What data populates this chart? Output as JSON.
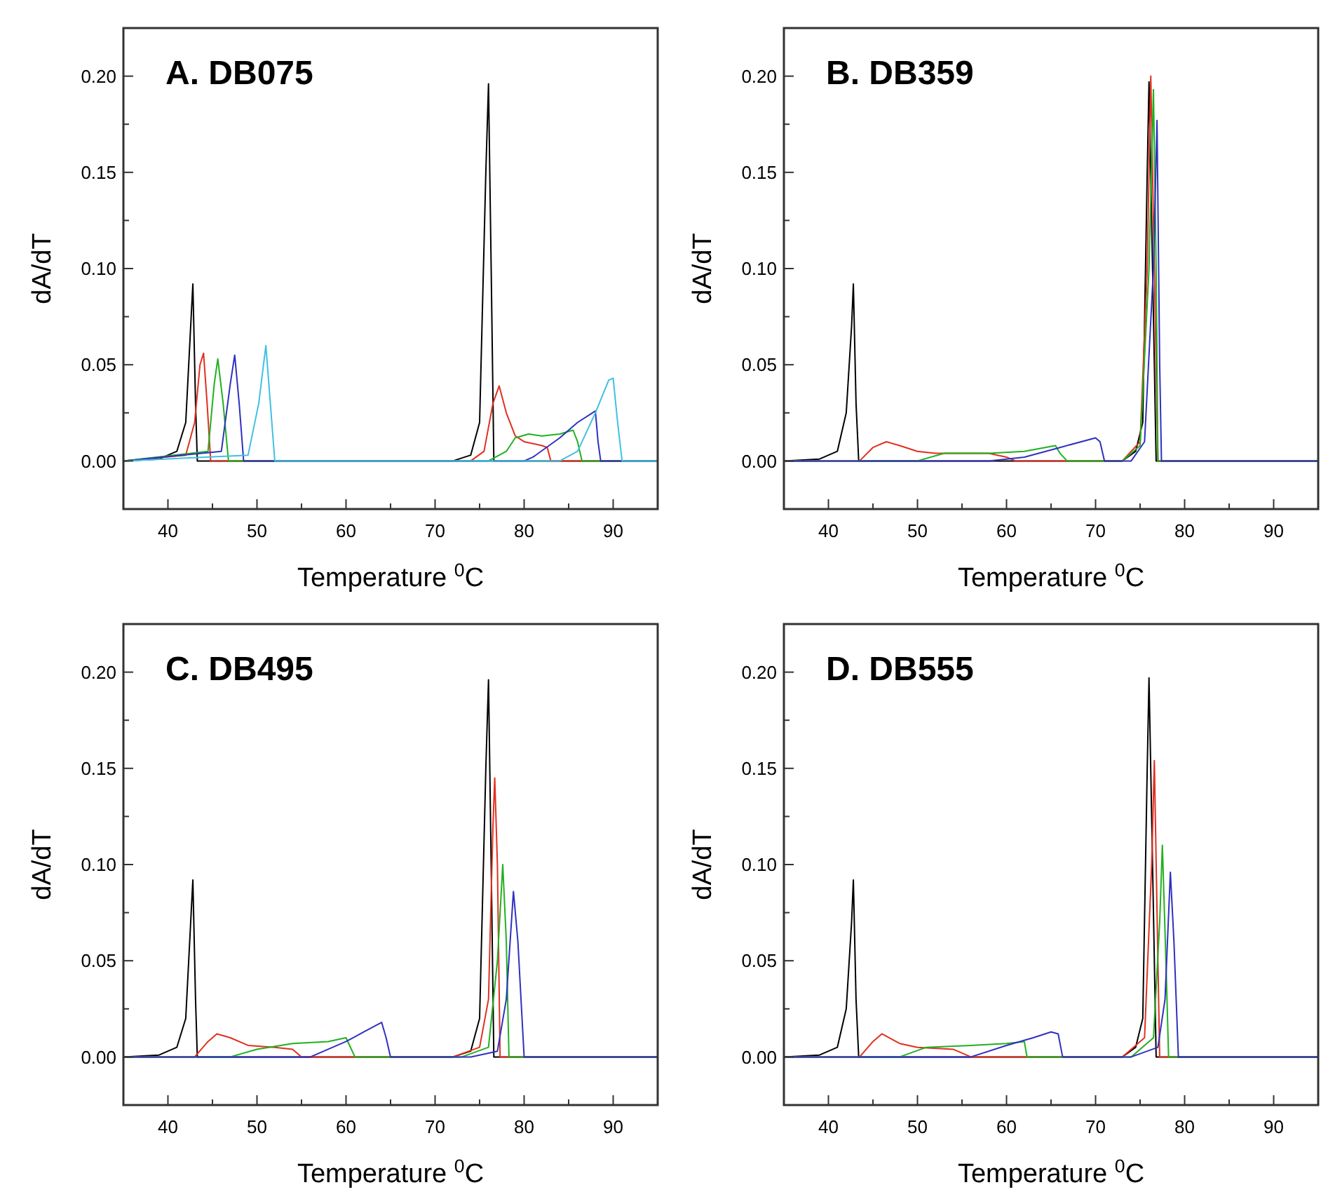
{
  "chart_data": [
    {
      "type": "line",
      "title": "A. DB075",
      "xlabel": "Temperature $^{0}$C",
      "ylabel": "dA/dT",
      "xlim": [
        35,
        95
      ],
      "ylim": [
        -0.025,
        0.225
      ],
      "xticks": [
        40,
        {
          "value": 45,
          "label": null
        },
        50,
        {
          "value": 55,
          "label": null
        },
        60,
        {
          "value": 65,
          "label": null
        },
        70,
        {
          "value": 75,
          "label": null
        },
        80,
        {
          "value": 85,
          "label": null
        },
        90,
        {
          "value": 95,
          "label": null
        }
      ],
      "yticks": [
        {
          "value": -0.025,
          "label": null
        },
        {
          "value": 0,
          "label": "0.00"
        },
        {
          "value": 0.025,
          "label": null
        },
        {
          "value": 0.05,
          "label": "0.05"
        },
        {
          "value": 0.075,
          "label": null
        },
        {
          "value": 0.1,
          "label": "0.10"
        },
        {
          "value": 0.125,
          "label": null
        },
        {
          "value": 0.15,
          "label": "0.15"
        },
        {
          "value": 0.175,
          "label": null
        },
        {
          "value": 0.2,
          "label": "0.20"
        }
      ],
      "grid": false,
      "marker": "none",
      "line_style": "solid",
      "series": [
        {
          "color": "#000000",
          "x": [
            35,
            39,
            41,
            42,
            42.5,
            42.8,
            43.1,
            43.3,
            60,
            72,
            74,
            75,
            75.7,
            76,
            76.3,
            76.6,
            95
          ],
          "values": [
            0,
            0.001,
            0.005,
            0.02,
            0.065,
            0.092,
            0.03,
            0,
            0,
            0,
            0.003,
            0.02,
            0.15,
            0.196,
            0.1,
            0,
            0
          ]
        },
        {
          "color": "#e03020",
          "x": [
            35,
            42,
            43,
            43.6,
            44,
            44.4,
            44.8,
            74,
            75.5,
            76.5,
            77.2,
            78,
            79,
            80,
            82,
            82.6,
            83,
            95
          ],
          "values": [
            0,
            0.003,
            0.02,
            0.05,
            0.056,
            0.03,
            0,
            0,
            0.005,
            0.03,
            0.039,
            0.025,
            0.013,
            0.01,
            0.008,
            0.007,
            0,
            0
          ]
        },
        {
          "color": "#20b020",
          "x": [
            35,
            44.5,
            45.2,
            45.6,
            46.2,
            46.8,
            76,
            78,
            79,
            80.5,
            82,
            84,
            85.5,
            86,
            86.5,
            95
          ],
          "values": [
            0,
            0.005,
            0.04,
            0.053,
            0.03,
            0,
            0,
            0.005,
            0.012,
            0.014,
            0.013,
            0.014,
            0.016,
            0.01,
            0,
            0
          ]
        },
        {
          "color": "#3030c0",
          "x": [
            35,
            46,
            47,
            47.5,
            48,
            48.5,
            80,
            81,
            84,
            86,
            88,
            88.3,
            88.6,
            95
          ],
          "values": [
            0,
            0.005,
            0.04,
            0.055,
            0.03,
            0,
            0,
            0.002,
            0.012,
            0.02,
            0.026,
            0.01,
            0,
            0
          ]
        },
        {
          "color": "#40c0e0",
          "x": [
            35,
            49,
            50.2,
            51,
            51.5,
            52,
            84,
            86,
            88,
            89.5,
            90,
            90.5,
            91,
            95
          ],
          "values": [
            0,
            0.003,
            0.03,
            0.06,
            0.03,
            0,
            0,
            0.005,
            0.025,
            0.042,
            0.043,
            0.02,
            0,
            0
          ]
        }
      ]
    },
    {
      "type": "line",
      "title": "B. DB359",
      "xlabel": "Temperature $^{0}$C",
      "ylabel": "dA/dT",
      "xlim": [
        35,
        95
      ],
      "ylim": [
        -0.025,
        0.225
      ],
      "xticks": [
        40,
        {
          "value": 45,
          "label": null
        },
        50,
        {
          "value": 55,
          "label": null
        },
        60,
        {
          "value": 65,
          "label": null
        },
        70,
        {
          "value": 75,
          "label": null
        },
        80,
        {
          "value": 85,
          "label": null
        },
        90,
        {
          "value": 95,
          "label": null
        }
      ],
      "yticks": [
        {
          "value": -0.025,
          "label": null
        },
        {
          "value": 0,
          "label": "0.00"
        },
        {
          "value": 0.025,
          "label": null
        },
        {
          "value": 0.05,
          "label": "0.05"
        },
        {
          "value": 0.075,
          "label": null
        },
        {
          "value": 0.1,
          "label": "0.10"
        },
        {
          "value": 0.125,
          "label": null
        },
        {
          "value": 0.15,
          "label": "0.15"
        },
        {
          "value": 0.175,
          "label": null
        },
        {
          "value": 0.2,
          "label": "0.20"
        }
      ],
      "grid": false,
      "marker": "none",
      "line_style": "solid",
      "series": [
        {
          "color": "#000000",
          "x": [
            35,
            39,
            41,
            42,
            42.6,
            42.8,
            43.1,
            43.4,
            73,
            74.5,
            75.3,
            75.8,
            76,
            76.4,
            76.8,
            95
          ],
          "values": [
            0,
            0.001,
            0.005,
            0.025,
            0.07,
            0.092,
            0.03,
            0,
            0,
            0.005,
            0.02,
            0.15,
            0.197,
            0.1,
            0,
            0
          ]
        },
        {
          "color": "#e03020",
          "x": [
            35,
            43.5,
            45,
            46.5,
            48,
            50,
            52,
            58,
            60,
            61,
            73,
            75,
            75.8,
            76.2,
            76.6,
            77,
            95
          ],
          "values": [
            0,
            0,
            0.007,
            0.01,
            0.008,
            0.005,
            0.004,
            0.004,
            0.002,
            0,
            0,
            0.01,
            0.1,
            0.2,
            0.1,
            0,
            0
          ]
        },
        {
          "color": "#20b020",
          "x": [
            35,
            50,
            53,
            58,
            62,
            65.5,
            66,
            66.8,
            73,
            75,
            76,
            76.5,
            76.8,
            77,
            95
          ],
          "values": [
            0,
            0,
            0.004,
            0.004,
            0.005,
            0.008,
            0.004,
            0,
            0,
            0.008,
            0.1,
            0.193,
            0.1,
            0,
            0
          ]
        },
        {
          "color": "#3030c0",
          "x": [
            35,
            58,
            62,
            66,
            70,
            70.5,
            71,
            74,
            75.5,
            76.5,
            76.9,
            77.2,
            77.4,
            95
          ],
          "values": [
            0,
            0,
            0.002,
            0.007,
            0.012,
            0.01,
            0,
            0,
            0.01,
            0.1,
            0.177,
            0.05,
            0,
            0
          ]
        }
      ]
    },
    {
      "type": "line",
      "title": "C. DB495",
      "xlabel": "Temperature $^{0}$C",
      "ylabel": "dA/dT",
      "xlim": [
        35,
        95
      ],
      "ylim": [
        -0.025,
        0.225
      ],
      "xticks": [
        40,
        {
          "value": 45,
          "label": null
        },
        50,
        {
          "value": 55,
          "label": null
        },
        60,
        {
          "value": 65,
          "label": null
        },
        70,
        {
          "value": 75,
          "label": null
        },
        80,
        {
          "value": 85,
          "label": null
        },
        90,
        {
          "value": 95,
          "label": null
        }
      ],
      "yticks": [
        {
          "value": -0.025,
          "label": null
        },
        {
          "value": 0,
          "label": "0.00"
        },
        {
          "value": 0.025,
          "label": null
        },
        {
          "value": 0.05,
          "label": "0.05"
        },
        {
          "value": 0.075,
          "label": null
        },
        {
          "value": 0.1,
          "label": "0.10"
        },
        {
          "value": 0.125,
          "label": null
        },
        {
          "value": 0.15,
          "label": "0.15"
        },
        {
          "value": 0.175,
          "label": null
        },
        {
          "value": 0.2,
          "label": "0.20"
        }
      ],
      "grid": false,
      "marker": "none",
      "line_style": "solid",
      "series": [
        {
          "color": "#000000",
          "x": [
            35,
            39,
            41,
            42,
            42.5,
            42.8,
            43.1,
            43.3,
            60,
            72,
            74,
            75,
            75.7,
            76,
            76.3,
            76.6,
            95
          ],
          "values": [
            0,
            0.001,
            0.005,
            0.02,
            0.065,
            0.092,
            0.03,
            0,
            0,
            0,
            0.003,
            0.02,
            0.15,
            0.196,
            0.1,
            0,
            0
          ]
        },
        {
          "color": "#e03020",
          "x": [
            35,
            43,
            44.5,
            45.5,
            47,
            49,
            52,
            54,
            55,
            72,
            75,
            76,
            76.5,
            76.7,
            77,
            77.3,
            95
          ],
          "values": [
            0,
            0,
            0.008,
            0.012,
            0.01,
            0.006,
            0.005,
            0.004,
            0,
            0,
            0.005,
            0.03,
            0.12,
            0.145,
            0.1,
            0,
            0
          ]
        },
        {
          "color": "#20b020",
          "x": [
            35,
            47,
            50,
            54,
            58,
            60,
            61,
            73,
            76,
            77,
            77.6,
            78,
            78.3,
            95
          ],
          "values": [
            0,
            0,
            0.004,
            0.007,
            0.008,
            0.01,
            0,
            0,
            0.005,
            0.05,
            0.1,
            0.06,
            0,
            0
          ]
        },
        {
          "color": "#3030c0",
          "x": [
            35,
            56,
            60,
            62,
            64,
            64.5,
            65,
            74,
            77,
            78,
            78.8,
            79.3,
            80,
            95
          ],
          "values": [
            0,
            0,
            0.008,
            0.013,
            0.018,
            0.01,
            0,
            0,
            0.003,
            0.03,
            0.086,
            0.06,
            0,
            0
          ]
        }
      ]
    },
    {
      "type": "line",
      "title": "D. DB555",
      "xlabel": "Temperature $^{0}$C",
      "ylabel": "dA/dT",
      "xlim": [
        35,
        95
      ],
      "ylim": [
        -0.025,
        0.225
      ],
      "xticks": [
        40,
        {
          "value": 45,
          "label": null
        },
        50,
        {
          "value": 55,
          "label": null
        },
        60,
        {
          "value": 65,
          "label": null
        },
        70,
        {
          "value": 75,
          "label": null
        },
        80,
        {
          "value": 85,
          "label": null
        },
        90,
        {
          "value": 95,
          "label": null
        }
      ],
      "yticks": [
        {
          "value": -0.025,
          "label": null
        },
        {
          "value": 0,
          "label": "0.00"
        },
        {
          "value": 0.025,
          "label": null
        },
        {
          "value": 0.05,
          "label": "0.05"
        },
        {
          "value": 0.075,
          "label": null
        },
        {
          "value": 0.1,
          "label": "0.10"
        },
        {
          "value": 0.125,
          "label": null
        },
        {
          "value": 0.15,
          "label": "0.15"
        },
        {
          "value": 0.175,
          "label": null
        },
        {
          "value": 0.2,
          "label": "0.20"
        }
      ],
      "grid": false,
      "marker": "none",
      "line_style": "solid",
      "series": [
        {
          "color": "#000000",
          "x": [
            35,
            39,
            41,
            42,
            42.6,
            42.8,
            43.1,
            43.4,
            73,
            74.5,
            75.3,
            75.8,
            76,
            76.4,
            76.8,
            95
          ],
          "values": [
            0,
            0.001,
            0.005,
            0.025,
            0.07,
            0.092,
            0.03,
            0,
            0,
            0.005,
            0.02,
            0.15,
            0.197,
            0.1,
            0,
            0
          ]
        },
        {
          "color": "#e03020",
          "x": [
            35,
            43.5,
            45,
            46,
            48,
            50,
            54,
            56,
            73,
            75.5,
            76.3,
            76.6,
            77,
            77.2,
            95
          ],
          "values": [
            0,
            0,
            0.008,
            0.012,
            0.007,
            0.005,
            0.004,
            0,
            0,
            0.01,
            0.1,
            0.154,
            0.05,
            0,
            0
          ]
        },
        {
          "color": "#20b020",
          "x": [
            35,
            48,
            51,
            56,
            60,
            62,
            62.3,
            74,
            76.5,
            77.2,
            77.5,
            77.9,
            78.2,
            95
          ],
          "values": [
            0,
            0,
            0.005,
            0.006,
            0.007,
            0.008,
            0,
            0,
            0.01,
            0.07,
            0.11,
            0.05,
            0,
            0
          ]
        },
        {
          "color": "#3030c0",
          "x": [
            35,
            56,
            60,
            63,
            65,
            65.8,
            66.3,
            74,
            77,
            77.8,
            78.4,
            78.8,
            79.3,
            95
          ],
          "values": [
            0,
            0,
            0.006,
            0.01,
            0.013,
            0.012,
            0,
            0,
            0.005,
            0.03,
            0.096,
            0.06,
            0,
            0
          ]
        }
      ]
    }
  ]
}
